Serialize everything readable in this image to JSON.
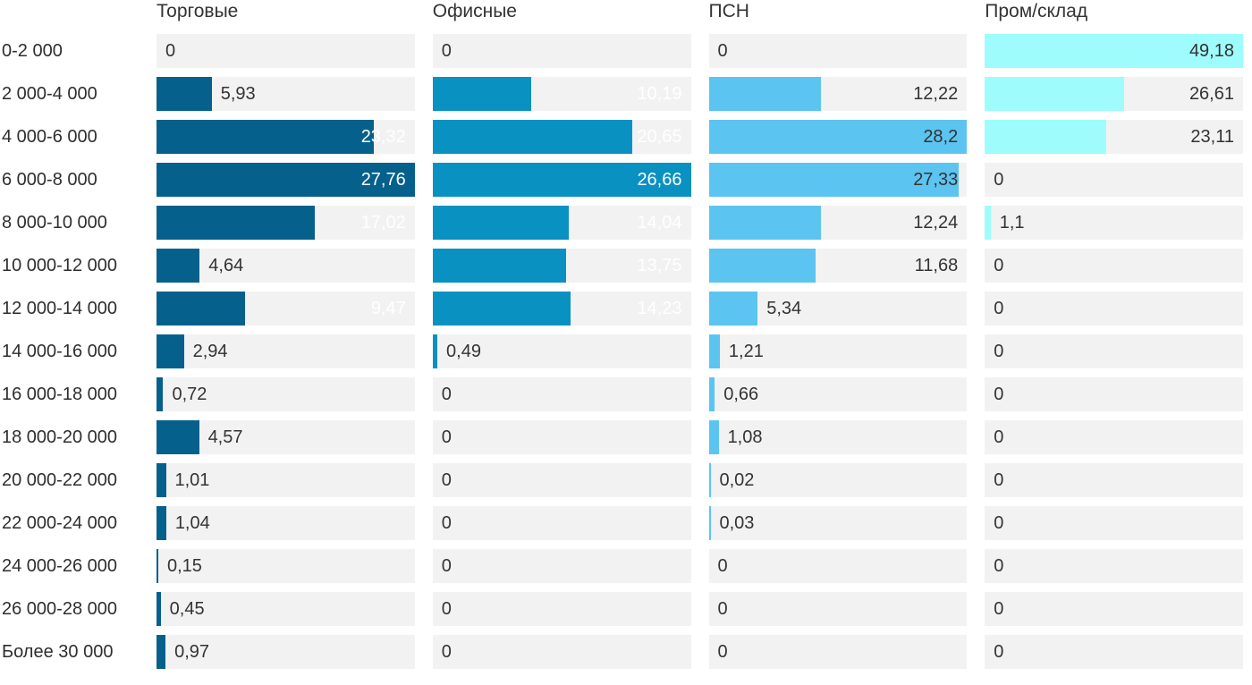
{
  "chart_data": {
    "type": "bar",
    "orientation": "horizontal",
    "title": "",
    "xlabel": "",
    "ylabel": "",
    "grid": false,
    "legend_position": "column-headers-top",
    "decimal_separator": ",",
    "scaling": "each column scaled to its own max value (max bar fills track)",
    "categories": [
      "0-2 000",
      "2 000-4 000",
      "4 000-6 000",
      "6 000-8 000",
      "8 000-10 000",
      "10 000-12 000",
      "12 000-14 000",
      "14 000-16 000",
      "16 000-18 000",
      "18 000-20 000",
      "20 000-22 000",
      "22 000-24 000",
      "24 000-26 000",
      "26 000-28 000",
      "Более 30 000"
    ],
    "series": [
      {
        "name": "Торговые",
        "color": "#05608c",
        "inside_label_color": "#ffffff",
        "values": [
          0,
          5.93,
          23.32,
          27.76,
          17.02,
          4.64,
          9.47,
          2.94,
          0.72,
          4.57,
          1.01,
          1.04,
          0.15,
          0.45,
          0.97
        ]
      },
      {
        "name": "Офисные",
        "color": "#0991c1",
        "inside_label_color": "#ffffff",
        "values": [
          0,
          10.19,
          20.65,
          26.66,
          14.04,
          13.75,
          14.23,
          0.49,
          0,
          0,
          0,
          0,
          0,
          0,
          0
        ]
      },
      {
        "name": "ПСН",
        "color": "#5cc4f0",
        "inside_label_color": "#333333",
        "values": [
          0,
          12.22,
          28.2,
          27.33,
          12.24,
          11.68,
          5.34,
          1.21,
          0.66,
          1.08,
          0.02,
          0.03,
          0,
          0,
          0
        ]
      },
      {
        "name": "Пром/склад",
        "color": "#9efcfc",
        "inside_label_color": "#333333",
        "values": [
          49.18,
          26.61,
          23.11,
          0,
          1.1,
          0,
          0,
          0,
          0,
          0,
          0,
          0,
          0,
          0,
          0
        ]
      }
    ]
  },
  "colors": {
    "track": "#f2f2f2",
    "text_dark": "#333333",
    "text_light": "#ffffff",
    "background": "#ffffff"
  }
}
